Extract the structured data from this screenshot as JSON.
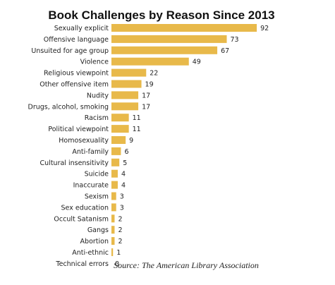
{
  "chart_data": {
    "type": "bar",
    "orientation": "horizontal",
    "title": "Book Challenges by Reason Since 2013",
    "source": "Source: The American Library Association",
    "bar_color": "#e8b94a",
    "categories": [
      "Sexually explicit",
      "Offensive language",
      "Unsuited for age group",
      "Violence",
      "Religious viewpoint",
      "Other offensive item",
      "Nudity",
      "Drugs, alcohol, smoking",
      "Racism",
      "Political viewpoint",
      "Homosexuality",
      "Anti-family",
      "Cultural insensitivity",
      "Suicide",
      "Inaccurate",
      "Sexism",
      "Sex education",
      "Occult Satanism",
      "Gangs",
      "Abortion",
      "Anti-ethnic",
      "Technical errors"
    ],
    "values": [
      92,
      73,
      67,
      49,
      22,
      19,
      17,
      17,
      11,
      11,
      9,
      6,
      5,
      4,
      4,
      3,
      3,
      2,
      2,
      2,
      1,
      0
    ],
    "grid": false,
    "legend": "none"
  }
}
